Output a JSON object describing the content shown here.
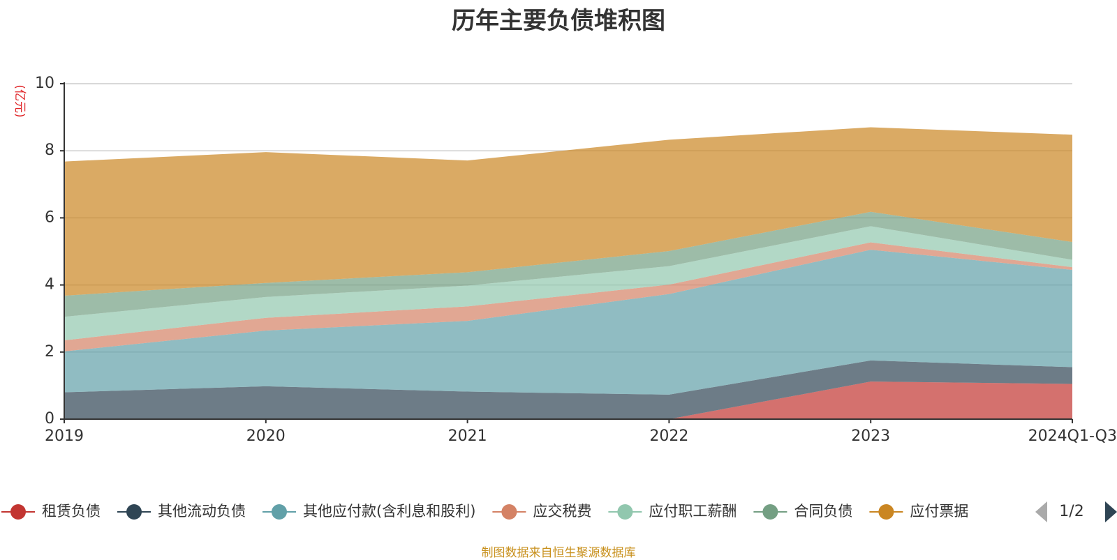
{
  "chart_data": {
    "type": "area",
    "stacked": true,
    "title": "历年主要负债堆积图",
    "ylabel": "(亿元)",
    "xlabel": "",
    "ylim": [
      0,
      10
    ],
    "yticks": [
      0,
      2,
      4,
      6,
      8,
      10
    ],
    "grid": true,
    "categories": [
      "2019",
      "2020",
      "2021",
      "2022",
      "2023",
      "2024Q1-Q3"
    ],
    "series": [
      {
        "name": "租赁负债",
        "color": "#c23531",
        "values": [
          0,
          0,
          0,
          0,
          1.12,
          1.05
        ]
      },
      {
        "name": "其他流动负债",
        "color": "#2f4554",
        "values": [
          0.8,
          0.98,
          0.82,
          0.73,
          0.63,
          0.5
        ]
      },
      {
        "name": "其他应付款(含利息和股利)",
        "color": "#61a0a8",
        "values": [
          1.22,
          1.66,
          2.11,
          3.0,
          3.3,
          2.9
        ]
      },
      {
        "name": "应交税费",
        "color": "#d48265",
        "values": [
          0.33,
          0.38,
          0.43,
          0.28,
          0.22,
          0.08
        ]
      },
      {
        "name": "应付职工薪酬",
        "color": "#91c7ae",
        "values": [
          0.7,
          0.62,
          0.62,
          0.55,
          0.48,
          0.22
        ]
      },
      {
        "name": "合同负债",
        "color": "#749f83",
        "values": [
          0.63,
          0.42,
          0.4,
          0.45,
          0.43,
          0.53
        ]
      },
      {
        "name": "应付票据",
        "color": "#ca8622",
        "values": [
          4.0,
          3.9,
          3.33,
          3.32,
          2.52,
          3.2
        ]
      }
    ]
  },
  "legend": {
    "page": "1/2",
    "prev_icon": "triangle-left-icon",
    "next_icon": "triangle-right-icon"
  },
  "footer": {
    "source": "制图数据来自恒生聚源数据库"
  }
}
